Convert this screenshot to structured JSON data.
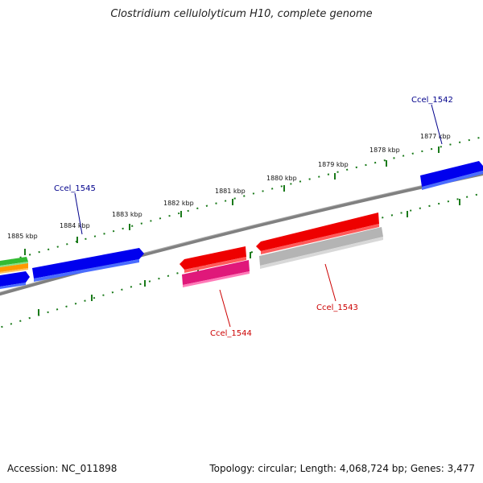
{
  "title": "Clostridium cellulolyticum H10, complete genome",
  "footer": {
    "accession": "Accession: NC_011898",
    "topology": "Topology: circular; Length: 4,068,724 bp; Genes: 3,477"
  },
  "ruler": {
    "labels": [
      "1877 kbp",
      "1878 kbp",
      "1879 kbp",
      "1880 kbp",
      "1881 kbp",
      "1882 kbp",
      "1883 kbp",
      "1884 kbp",
      "1885 kbp"
    ]
  },
  "genes": {
    "forward_label_color": "#00008b",
    "reverse_label_color": "#cc0000",
    "labels": [
      "Ccel_1542",
      "Ccel_1545",
      "Ccel_1544",
      "Ccel_1543"
    ]
  },
  "colors": {
    "backbone": "#808080",
    "tick": "#1a7a1a",
    "cds_forward": "#0000ee",
    "cds_reverse": "#ee0000",
    "gene_pink": "#e0187a",
    "gene_grey": "#b4b4b4",
    "gene_green": "#33bb33",
    "gene_orange": "#ff9900"
  }
}
